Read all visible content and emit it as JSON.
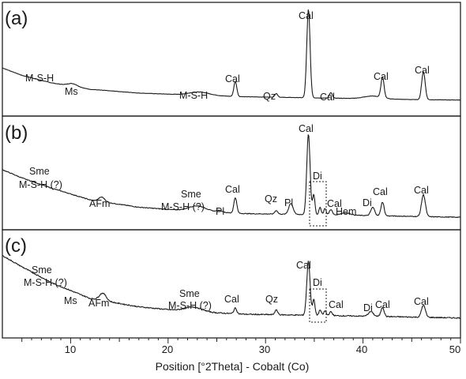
{
  "chart_data": {
    "type": "line",
    "xlabel": "Position [°2Theta] - Cobalt (Co)",
    "xlim": [
      3,
      50
    ],
    "xticks": [
      "10",
      "20",
      "30",
      "40",
      "50"
    ],
    "xtick_values": [
      10,
      20,
      30,
      40,
      50
    ],
    "grid": false,
    "panels": [
      {
        "label": "(a)",
        "baseline": [
          [
            3,
            0.39
          ],
          [
            5,
            0.31
          ],
          [
            8,
            0.23
          ],
          [
            12,
            0.16
          ],
          [
            17,
            0.12
          ],
          [
            22,
            0.1
          ],
          [
            28,
            0.08
          ],
          [
            34,
            0.07
          ],
          [
            40,
            0.06
          ],
          [
            45,
            0.05
          ],
          [
            50,
            0.045
          ]
        ],
        "peaks": [
          [
            10.2,
            0.03,
            0.5
          ],
          [
            23.2,
            0.035,
            1.0
          ],
          [
            26.9,
            0.16,
            0.15
          ],
          [
            31.1,
            0.04,
            0.15
          ],
          [
            34.4,
            0.95,
            0.17
          ],
          [
            36.7,
            0.06,
            0.15
          ],
          [
            41,
            0.03,
            0.9
          ],
          [
            42,
            0.22,
            0.16
          ],
          [
            46.2,
            0.3,
            0.18
          ]
        ],
        "annotations": [
          {
            "text": "M-S-H",
            "x": 7.5
          },
          {
            "text": "Ms",
            "x": 10.2
          },
          {
            "text": "M-S-H",
            "x": 23.2
          },
          {
            "text": "Cal",
            "x": 26.9
          },
          {
            "text": "Qz",
            "x": 31.1
          },
          {
            "text": "Cal",
            "x": 34.4
          },
          {
            "text": "Cal",
            "x": 36.7
          },
          {
            "text": "Cal",
            "x": 42
          },
          {
            "text": "Cal",
            "x": 46.2
          }
        ]
      },
      {
        "label": "(b)",
        "baseline": [
          [
            3,
            0.57
          ],
          [
            5,
            0.48
          ],
          [
            8,
            0.37
          ],
          [
            12,
            0.24
          ],
          [
            17,
            0.16
          ],
          [
            22,
            0.12
          ],
          [
            28,
            0.09
          ],
          [
            34,
            0.08
          ],
          [
            40,
            0.07
          ],
          [
            45,
            0.06
          ],
          [
            50,
            0.05
          ]
        ],
        "peaks": [
          [
            13.2,
            0.05,
            0.3
          ],
          [
            23,
            0.06,
            0.9
          ],
          [
            25.3,
            0.02,
            0.3
          ],
          [
            26.9,
            0.17,
            0.15
          ],
          [
            31.1,
            0.04,
            0.15
          ],
          [
            32.6,
            0.12,
            0.22
          ],
          [
            34.4,
            0.88,
            0.17
          ],
          [
            34.95,
            0.22,
            0.12
          ],
          [
            35.6,
            0.08,
            0.12
          ],
          [
            36.1,
            0.07,
            0.12
          ],
          [
            36.7,
            0.06,
            0.15
          ],
          [
            38.2,
            0.025,
            0.5
          ],
          [
            41,
            0.09,
            0.2
          ],
          [
            42,
            0.15,
            0.16
          ],
          [
            46.2,
            0.24,
            0.2
          ]
        ],
        "annotations": [
          {
            "text": "Sme",
            "x": 7.5
          },
          {
            "text": "M-S-H (?)",
            "x": 7.5
          },
          {
            "text": "AFm",
            "x": 13.2
          },
          {
            "text": "Sme",
            "x": 23.2
          },
          {
            "text": "M-S-H (?)",
            "x": 23.2
          },
          {
            "text": "Pl",
            "x": 25.3
          },
          {
            "text": "Cal",
            "x": 26.9
          },
          {
            "text": "Qz",
            "x": 31.1
          },
          {
            "text": "Pl",
            "x": 32.6
          },
          {
            "text": "Cal",
            "x": 34.4
          },
          {
            "text": "Di",
            "x": 35.5
          },
          {
            "text": "Cal",
            "x": 37.5
          },
          {
            "text": "Hem",
            "x": 38.5
          },
          {
            "text": "Di",
            "x": 40.6
          },
          {
            "text": "Cal",
            "x": 42
          },
          {
            "text": "Cal",
            "x": 46.2
          }
        ]
      },
      {
        "label": "(c)",
        "baseline": [
          [
            3,
            0.74
          ],
          [
            5,
            0.62
          ],
          [
            8,
            0.45
          ],
          [
            12,
            0.28
          ],
          [
            17,
            0.19
          ],
          [
            22,
            0.14
          ],
          [
            28,
            0.11
          ],
          [
            34,
            0.1
          ],
          [
            40,
            0.09
          ],
          [
            45,
            0.08
          ],
          [
            50,
            0.07
          ]
        ],
        "peaks": [
          [
            13.3,
            0.08,
            0.35
          ],
          [
            22.6,
            0.05,
            0.9
          ],
          [
            26.9,
            0.06,
            0.15
          ],
          [
            31.1,
            0.05,
            0.15
          ],
          [
            34.4,
            0.58,
            0.17
          ],
          [
            34.95,
            0.17,
            0.12
          ],
          [
            35.6,
            0.06,
            0.12
          ],
          [
            36.1,
            0.05,
            0.12
          ],
          [
            36.7,
            0.04,
            0.15
          ],
          [
            40.8,
            0.05,
            0.25
          ],
          [
            42,
            0.1,
            0.16
          ],
          [
            46.2,
            0.13,
            0.2
          ]
        ],
        "annotations": [
          {
            "text": "Sme",
            "x": 7.5
          },
          {
            "text": "M-S-H (?)",
            "x": 7.5
          },
          {
            "text": "Ms",
            "x": 10.2
          },
          {
            "text": "AFm",
            "x": 13.3
          },
          {
            "text": "Sme",
            "x": 23.2
          },
          {
            "text": "M-S-H (?)",
            "x": 23.2
          },
          {
            "text": "Cal",
            "x": 26.9
          },
          {
            "text": "Qz",
            "x": 31.1
          },
          {
            "text": "Cal",
            "x": 34.4
          },
          {
            "text": "Di",
            "x": 35.5
          },
          {
            "text": "Cal",
            "x": 37.5
          },
          {
            "text": "Di",
            "x": 40.8
          },
          {
            "text": "Cal",
            "x": 42
          },
          {
            "text": "Cal",
            "x": 46.2
          }
        ]
      }
    ]
  }
}
